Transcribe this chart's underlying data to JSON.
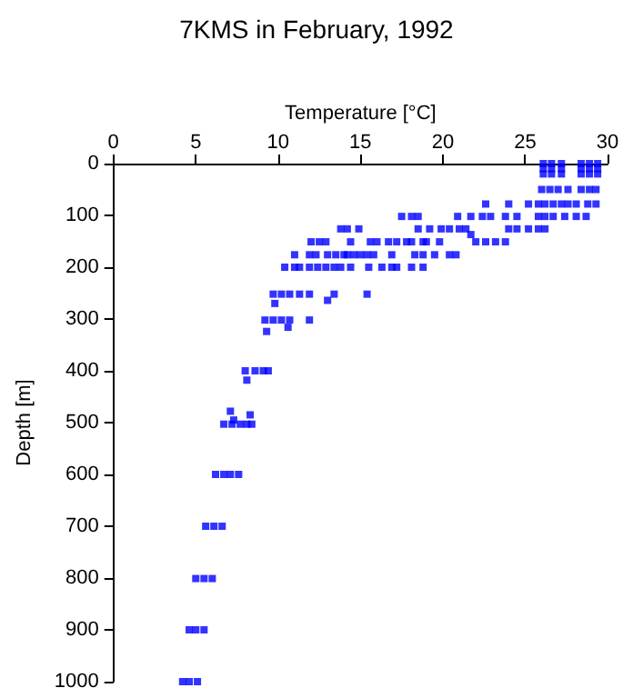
{
  "chart_data": {
    "type": "scatter",
    "title": "7KMS in February, 1992",
    "xlabel": "Temperature [°C]",
    "ylabel": "Depth [m]",
    "xlim": [
      0,
      30
    ],
    "xticks": [
      0,
      5,
      10,
      15,
      20,
      25,
      30
    ],
    "ylim": [
      1000,
      0
    ],
    "yticks": [
      0,
      100,
      200,
      300,
      400,
      500,
      600,
      700,
      800,
      900,
      1000
    ],
    "grid": false,
    "marker": "square",
    "series": [
      {
        "color": "#0000ff",
        "x": [
          26.1,
          26.6,
          27.2,
          28.4,
          28.9,
          29.4,
          26.1,
          26.6,
          27.2,
          28.4,
          28.9,
          29.4,
          26.1,
          26.6,
          27.2,
          28.4,
          28.9,
          29.4,
          26.0,
          26.5,
          27.0,
          27.6,
          28.4,
          28.9,
          29.3,
          22.6,
          24.0,
          25.2,
          25.8,
          26.2,
          26.7,
          27.2,
          27.6,
          28.1,
          28.8,
          29.3,
          17.5,
          18.1,
          18.5,
          20.9,
          21.7,
          22.4,
          22.9,
          23.8,
          24.5,
          25.8,
          26.2,
          26.7,
          27.4,
          28.1,
          28.7,
          13.8,
          14.2,
          14.9,
          18.5,
          19.2,
          19.9,
          20.4,
          21.0,
          21.4,
          24.0,
          24.5,
          25.2,
          25.8,
          26.2,
          21.7,
          12.0,
          12.5,
          12.9,
          14.4,
          15.6,
          16.0,
          16.7,
          17.2,
          17.8,
          18.1,
          18.8,
          19.0,
          19.8,
          22.0,
          22.6,
          23.2,
          23.8,
          11.0,
          11.9,
          12.3,
          13.0,
          13.5,
          14.0,
          14.2,
          14.6,
          15.0,
          15.4,
          15.8,
          16.9,
          18.3,
          18.8,
          19.5,
          20.4,
          20.8,
          10.4,
          11.0,
          11.3,
          11.9,
          12.4,
          12.9,
          13.4,
          13.8,
          14.4,
          15.5,
          16.3,
          16.9,
          17.2,
          18.1,
          18.8,
          9.7,
          10.2,
          10.7,
          11.3,
          11.9,
          13.4,
          15.4,
          13.0,
          9.8,
          9.2,
          9.7,
          10.2,
          10.7,
          11.9,
          10.6,
          9.3,
          8.0,
          8.6,
          9.1,
          9.4,
          8.1,
          7.1,
          8.3,
          7.3,
          6.7,
          7.2,
          7.7,
          8.1,
          8.4,
          6.2,
          6.7,
          7.1,
          7.6,
          5.6,
          6.1,
          6.6,
          5.0,
          5.5,
          6.0,
          4.6,
          5.0,
          5.5,
          4.2,
          4.6,
          5.1
        ],
        "values": [
          0,
          0,
          0,
          0,
          0,
          0,
          10,
          10,
          10,
          10,
          10,
          10,
          20,
          20,
          20,
          20,
          20,
          20,
          50,
          50,
          50,
          50,
          50,
          50,
          50,
          78,
          78,
          78,
          78,
          78,
          78,
          78,
          78,
          78,
          78,
          78,
          102,
          102,
          102,
          102,
          102,
          102,
          102,
          102,
          102,
          102,
          102,
          102,
          102,
          102,
          102,
          126,
          126,
          126,
          126,
          126,
          126,
          126,
          126,
          126,
          126,
          126,
          126,
          126,
          126,
          137,
          151,
          151,
          151,
          151,
          151,
          151,
          151,
          151,
          151,
          151,
          151,
          151,
          151,
          151,
          151,
          151,
          151,
          176,
          176,
          176,
          176,
          176,
          176,
          176,
          176,
          176,
          176,
          176,
          176,
          176,
          176,
          176,
          176,
          176,
          200,
          200,
          200,
          200,
          200,
          200,
          200,
          200,
          200,
          200,
          200,
          200,
          200,
          200,
          200,
          252,
          252,
          252,
          252,
          252,
          252,
          252,
          264,
          270,
          302,
          302,
          302,
          302,
          302,
          316,
          324,
          400,
          400,
          400,
          400,
          418,
          478,
          485,
          495,
          503,
          503,
          503,
          503,
          503,
          600,
          600,
          600,
          600,
          700,
          700,
          700,
          801,
          801,
          801,
          900,
          900,
          900,
          1000,
          1000,
          1000
        ]
      }
    ]
  }
}
